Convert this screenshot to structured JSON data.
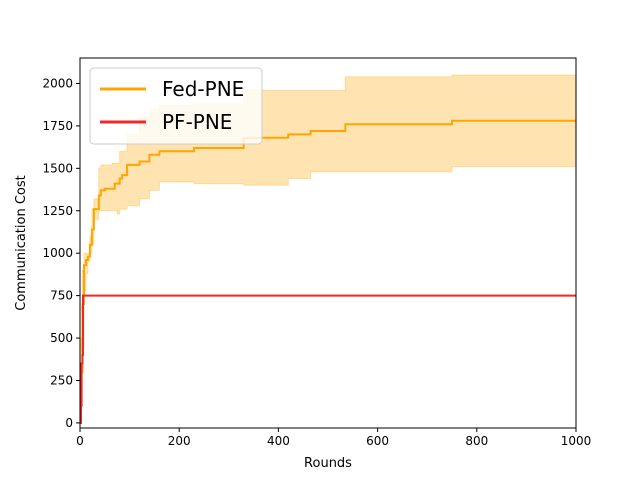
{
  "chart_data": {
    "type": "line",
    "title": "",
    "xlabel": "Rounds",
    "ylabel": "Communication Cost",
    "xlim": [
      0,
      1000
    ],
    "ylim": [
      -30,
      2150
    ],
    "x_ticks": [
      0,
      200,
      400,
      600,
      800,
      1000
    ],
    "y_ticks": [
      0,
      250,
      500,
      750,
      1000,
      1250,
      1500,
      1750,
      2000
    ],
    "grid": false,
    "legend_position": "top-left",
    "series": [
      {
        "name": "Fed-PNE",
        "color": "#ffa500",
        "band_color": "#ffa500",
        "step": true,
        "points": [
          [
            0,
            0
          ],
          [
            2,
            300
          ],
          [
            5,
            700
          ],
          [
            8,
            930
          ],
          [
            12,
            960
          ],
          [
            16,
            980
          ],
          [
            20,
            1050
          ],
          [
            24,
            1140
          ],
          [
            28,
            1260
          ],
          [
            38,
            1340
          ],
          [
            42,
            1370
          ],
          [
            50,
            1380
          ],
          [
            65,
            1380
          ],
          [
            70,
            1410
          ],
          [
            80,
            1440
          ],
          [
            85,
            1460
          ],
          [
            95,
            1520
          ],
          [
            120,
            1540
          ],
          [
            140,
            1580
          ],
          [
            160,
            1600
          ],
          [
            230,
            1620
          ],
          [
            330,
            1680
          ],
          [
            420,
            1700
          ],
          [
            465,
            1720
          ],
          [
            535,
            1760
          ],
          [
            750,
            1780
          ],
          [
            1000,
            1780
          ]
        ],
        "band_lower": [
          [
            0,
            0
          ],
          [
            2,
            100
          ],
          [
            5,
            450
          ],
          [
            8,
            780
          ],
          [
            12,
            880
          ],
          [
            16,
            950
          ],
          [
            20,
            1000
          ],
          [
            24,
            1050
          ],
          [
            28,
            1200
          ],
          [
            38,
            1250
          ],
          [
            50,
            1250
          ],
          [
            65,
            1250
          ],
          [
            75,
            1230
          ],
          [
            80,
            1260
          ],
          [
            95,
            1280
          ],
          [
            120,
            1320
          ],
          [
            140,
            1370
          ],
          [
            160,
            1420
          ],
          [
            230,
            1410
          ],
          [
            330,
            1400
          ],
          [
            420,
            1440
          ],
          [
            465,
            1480
          ],
          [
            535,
            1480
          ],
          [
            750,
            1510
          ],
          [
            1000,
            1510
          ]
        ],
        "band_upper": [
          [
            0,
            0
          ],
          [
            2,
            500
          ],
          [
            5,
            900
          ],
          [
            8,
            1000
          ],
          [
            12,
            1000
          ],
          [
            16,
            1000
          ],
          [
            20,
            1100
          ],
          [
            24,
            1260
          ],
          [
            28,
            1320
          ],
          [
            38,
            1500
          ],
          [
            42,
            1520
          ],
          [
            65,
            1530
          ],
          [
            80,
            1600
          ],
          [
            95,
            1700
          ],
          [
            120,
            1800
          ],
          [
            140,
            1850
          ],
          [
            160,
            1870
          ],
          [
            230,
            1880
          ],
          [
            330,
            1960
          ],
          [
            420,
            1960
          ],
          [
            535,
            2040
          ],
          [
            750,
            2050
          ],
          [
            1000,
            2050
          ]
        ]
      },
      {
        "name": "PF-PNE",
        "color": "#f02828",
        "step": true,
        "points": [
          [
            0,
            0
          ],
          [
            2,
            100
          ],
          [
            3,
            350
          ],
          [
            4,
            350
          ],
          [
            5,
            400
          ],
          [
            6,
            750
          ],
          [
            1000,
            750
          ]
        ]
      }
    ]
  }
}
